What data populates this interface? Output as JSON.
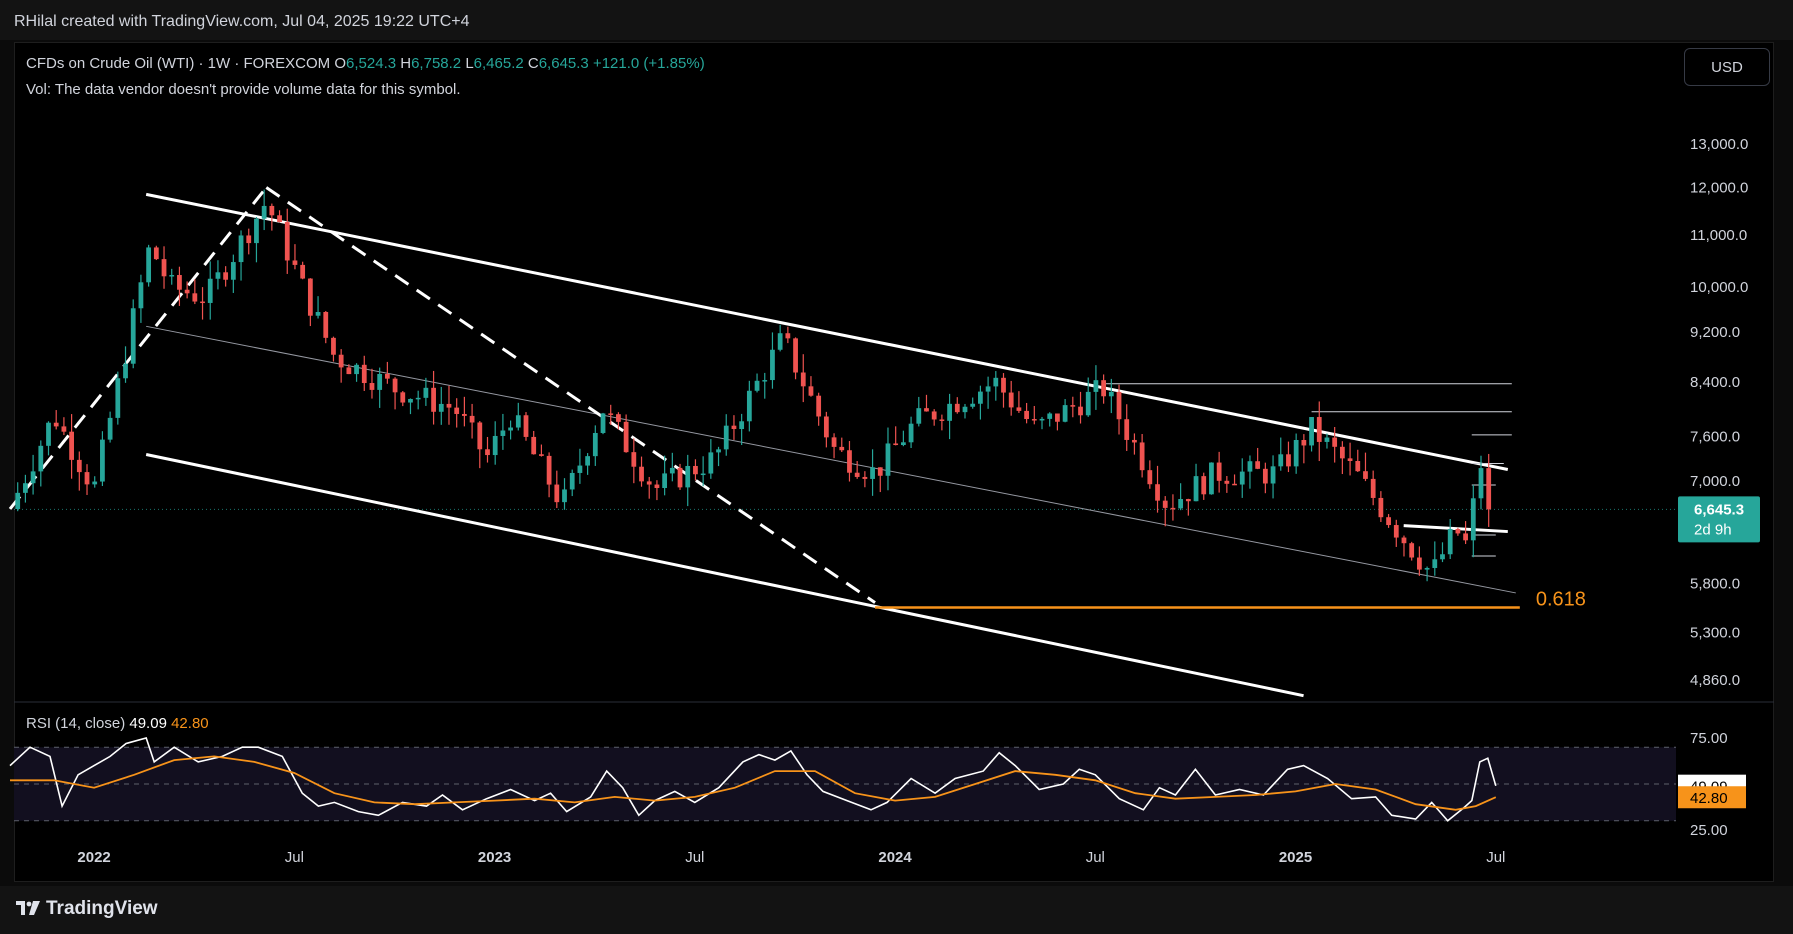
{
  "header": {
    "credit": "RHilal created with TradingView.com, Jul 04, 2025 19:22 UTC+4"
  },
  "legend": {
    "symbol": "CFDs on Crude Oil (WTI) · 1W · FOREXCOM",
    "o_label": "O",
    "o_value": "6,524.3",
    "h_label": "H",
    "h_value": "6,758.2",
    "l_label": "L",
    "l_value": "6,465.2",
    "c_label": "C",
    "c_value": "6,645.3",
    "change": "+121.0 (+1.85%)",
    "volume_note": "Vol: The data vendor doesn't provide volume data for this symbol."
  },
  "currency_button": "USD",
  "rsi": {
    "label": "RSI (14, close)",
    "value": "49.09",
    "ma_value": "42.80"
  },
  "footer": {
    "brand": "TradingView"
  },
  "colors": {
    "up": "#26a69a",
    "down": "#ef5350",
    "rsi": "#ffffff",
    "rsi_ma": "#f7931a",
    "fib": "#f7931a",
    "background": "#000000"
  },
  "chart_data": [
    {
      "type": "candlestick",
      "title": "CFDs on Crude Oil (WTI) · 1W · FOREXCOM",
      "scale": "log",
      "y_ticks": [
        {
          "v": 13000,
          "label": "13,000.0"
        },
        {
          "v": 12000,
          "label": "12,000.0"
        },
        {
          "v": 11000,
          "label": "11,000.0"
        },
        {
          "v": 10000,
          "label": "10,000.0"
        },
        {
          "v": 9200,
          "label": "9,200.0"
        },
        {
          "v": 8400,
          "label": "8,400.0"
        },
        {
          "v": 7600,
          "label": "7,600.0"
        },
        {
          "v": 7000,
          "label": "7,000.0"
        },
        {
          "v": 5800,
          "label": "5,800.0"
        },
        {
          "v": 5300,
          "label": "5,300.0"
        },
        {
          "v": 4860,
          "label": "4,860.0"
        }
      ],
      "ylim": [
        4700,
        14300
      ],
      "x_ticks": [
        {
          "t": 2022.0,
          "label": "2022",
          "bold": true
        },
        {
          "t": 2022.5,
          "label": "Jul",
          "bold": false
        },
        {
          "t": 2023.0,
          "label": "2023",
          "bold": true
        },
        {
          "t": 2023.5,
          "label": "Jul",
          "bold": false
        },
        {
          "t": 2024.0,
          "label": "2024",
          "bold": true
        },
        {
          "t": 2024.5,
          "label": "Jul",
          "bold": false
        },
        {
          "t": 2025.0,
          "label": "2025",
          "bold": true
        },
        {
          "t": 2025.5,
          "label": "Jul",
          "bold": false
        }
      ],
      "xlim": [
        2021.8,
        2025.95
      ],
      "last_price": {
        "value": 6645.3,
        "label": "6,645.3",
        "countdown": "2d 9h"
      },
      "fib_level": {
        "label": "0.618",
        "value": 5550
      },
      "anchors": [
        {
          "t": 2021.79,
          "v": 6650
        },
        {
          "t": 2021.9,
          "v": 7900
        },
        {
          "t": 2022.0,
          "v": 6900
        },
        {
          "t": 2022.14,
          "v": 10800
        },
        {
          "t": 2022.19,
          "v": 10000
        },
        {
          "t": 2022.28,
          "v": 9800
        },
        {
          "t": 2022.43,
          "v": 11700
        },
        {
          "t": 2022.52,
          "v": 10000
        },
        {
          "t": 2022.6,
          "v": 8800
        },
        {
          "t": 2022.75,
          "v": 8300
        },
        {
          "t": 2022.9,
          "v": 8000
        },
        {
          "t": 2022.98,
          "v": 7300
        },
        {
          "t": 2023.04,
          "v": 7900
        },
        {
          "t": 2023.17,
          "v": 6700
        },
        {
          "t": 2023.27,
          "v": 8000
        },
        {
          "t": 2023.4,
          "v": 6900
        },
        {
          "t": 2023.55,
          "v": 7300
        },
        {
          "t": 2023.72,
          "v": 9100
        },
        {
          "t": 2023.85,
          "v": 7400
        },
        {
          "t": 2023.95,
          "v": 7100
        },
        {
          "t": 2024.05,
          "v": 7800
        },
        {
          "t": 2024.25,
          "v": 8400
        },
        {
          "t": 2024.35,
          "v": 7700
        },
        {
          "t": 2024.52,
          "v": 8300
        },
        {
          "t": 2024.68,
          "v": 6700
        },
        {
          "t": 2024.8,
          "v": 7100
        },
        {
          "t": 2024.95,
          "v": 7100
        },
        {
          "t": 2025.04,
          "v": 7700
        },
        {
          "t": 2025.15,
          "v": 7100
        },
        {
          "t": 2025.27,
          "v": 6300
        },
        {
          "t": 2025.34,
          "v": 5900
        },
        {
          "t": 2025.4,
          "v": 6400
        },
        {
          "t": 2025.43,
          "v": 6200
        },
        {
          "t": 2025.46,
          "v": 7300
        },
        {
          "t": 2025.48,
          "v": 6800
        },
        {
          "t": 2025.5,
          "v": 6645
        }
      ],
      "trendlines": [
        {
          "from": {
            "t": 2022.13,
            "v": 11850
          },
          "to": {
            "t": 2025.53,
            "v": 7150
          },
          "style": "solid",
          "width": 3
        },
        {
          "from": {
            "t": 2022.13,
            "v": 9300
          },
          "to": {
            "t": 2025.55,
            "v": 5700
          },
          "style": "solid",
          "width": 1
        },
        {
          "from": {
            "t": 2022.13,
            "v": 7350
          },
          "to": {
            "t": 2025.02,
            "v": 4720
          },
          "style": "solid",
          "width": 3
        },
        {
          "from": {
            "t": 2021.79,
            "v": 6650
          },
          "to": {
            "t": 2022.43,
            "v": 12000
          },
          "style": "dashed",
          "width": 3
        },
        {
          "from": {
            "t": 2022.43,
            "v": 12000
          },
          "to": {
            "t": 2023.95,
            "v": 5600
          },
          "style": "dashed",
          "width": 3
        },
        {
          "from": {
            "t": 2025.27,
            "v": 6450
          },
          "to": {
            "t": 2025.53,
            "v": 6380
          },
          "style": "solid",
          "width": 3
        }
      ],
      "horizontal_lines": [
        {
          "from_t": 2024.52,
          "to_t": 2025.54,
          "v": 8370
        },
        {
          "from_t": 2025.04,
          "to_t": 2025.54,
          "v": 7950
        },
        {
          "from_t": 2025.44,
          "to_t": 2025.54,
          "v": 7620
        },
        {
          "from_t": 2025.44,
          "to_t": 2025.52,
          "v": 7230
        },
        {
          "from_t": 2025.44,
          "to_t": 2025.5,
          "v": 6950
        },
        {
          "from_t": 2025.44,
          "to_t": 2025.5,
          "v": 6340
        },
        {
          "from_t": 2025.44,
          "to_t": 2025.5,
          "v": 6100
        }
      ]
    },
    {
      "type": "line",
      "title": "RSI (14, close)",
      "ylim": [
        25,
        75
      ],
      "y_ticks": [
        {
          "v": 75,
          "label": "75.00"
        },
        {
          "v": 25,
          "label": "25.00"
        }
      ],
      "band": [
        30,
        70
      ],
      "series": [
        {
          "name": "RSI",
          "points": [
            [
              2021.79,
              60
            ],
            [
              2021.84,
              70
            ],
            [
              2021.89,
              65
            ],
            [
              2021.92,
              38
            ],
            [
              2021.96,
              55
            ],
            [
              2022.0,
              60
            ],
            [
              2022.04,
              65
            ],
            [
              2022.08,
              72
            ],
            [
              2022.13,
              75
            ],
            [
              2022.15,
              62
            ],
            [
              2022.2,
              70
            ],
            [
              2022.26,
              62
            ],
            [
              2022.32,
              65
            ],
            [
              2022.37,
              70
            ],
            [
              2022.41,
              70
            ],
            [
              2022.47,
              65
            ],
            [
              2022.52,
              45
            ],
            [
              2022.56,
              38
            ],
            [
              2022.6,
              40
            ],
            [
              2022.66,
              35
            ],
            [
              2022.71,
              33
            ],
            [
              2022.77,
              40
            ],
            [
              2022.83,
              38
            ],
            [
              2022.87,
              44
            ],
            [
              2022.92,
              36
            ],
            [
              2022.98,
              42
            ],
            [
              2023.04,
              47
            ],
            [
              2023.1,
              41
            ],
            [
              2023.14,
              45
            ],
            [
              2023.18,
              35
            ],
            [
              2023.24,
              43
            ],
            [
              2023.28,
              57
            ],
            [
              2023.32,
              48
            ],
            [
              2023.36,
              33
            ],
            [
              2023.4,
              41
            ],
            [
              2023.45,
              46
            ],
            [
              2023.5,
              40
            ],
            [
              2023.56,
              48
            ],
            [
              2023.62,
              62
            ],
            [
              2023.66,
              66
            ],
            [
              2023.7,
              63
            ],
            [
              2023.74,
              68
            ],
            [
              2023.78,
              55
            ],
            [
              2023.82,
              46
            ],
            [
              2023.88,
              41
            ],
            [
              2023.94,
              36
            ],
            [
              2023.98,
              40
            ],
            [
              2024.04,
              53
            ],
            [
              2024.1,
              45
            ],
            [
              2024.15,
              53
            ],
            [
              2024.22,
              57
            ],
            [
              2024.26,
              67
            ],
            [
              2024.3,
              60
            ],
            [
              2024.36,
              47
            ],
            [
              2024.42,
              50
            ],
            [
              2024.46,
              58
            ],
            [
              2024.5,
              55
            ],
            [
              2024.56,
              42
            ],
            [
              2024.62,
              36
            ],
            [
              2024.66,
              48
            ],
            [
              2024.7,
              44
            ],
            [
              2024.75,
              58
            ],
            [
              2024.8,
              44
            ],
            [
              2024.86,
              47
            ],
            [
              2024.92,
              44
            ],
            [
              2024.98,
              58
            ],
            [
              2025.02,
              60
            ],
            [
              2025.08,
              53
            ],
            [
              2025.14,
              42
            ],
            [
              2025.2,
              43
            ],
            [
              2025.24,
              33
            ],
            [
              2025.3,
              31
            ],
            [
              2025.34,
              40
            ],
            [
              2025.38,
              30
            ],
            [
              2025.42,
              37
            ],
            [
              2025.44,
              41
            ],
            [
              2025.46,
              62
            ],
            [
              2025.48,
              64
            ],
            [
              2025.5,
              49
            ]
          ]
        },
        {
          "name": "RSI MA",
          "points": [
            [
              2021.79,
              52
            ],
            [
              2021.9,
              52
            ],
            [
              2022.0,
              48
            ],
            [
              2022.1,
              55
            ],
            [
              2022.2,
              63
            ],
            [
              2022.3,
              65
            ],
            [
              2022.4,
              62
            ],
            [
              2022.5,
              56
            ],
            [
              2022.6,
              45
            ],
            [
              2022.7,
              40
            ],
            [
              2022.8,
              39
            ],
            [
              2022.9,
              40
            ],
            [
              2023.0,
              41
            ],
            [
              2023.1,
              42
            ],
            [
              2023.2,
              40
            ],
            [
              2023.3,
              43
            ],
            [
              2023.4,
              41
            ],
            [
              2023.5,
              43
            ],
            [
              2023.6,
              48
            ],
            [
              2023.7,
              57
            ],
            [
              2023.8,
              57
            ],
            [
              2023.9,
              45
            ],
            [
              2024.0,
              41
            ],
            [
              2024.1,
              43
            ],
            [
              2024.2,
              50
            ],
            [
              2024.3,
              57
            ],
            [
              2024.4,
              55
            ],
            [
              2024.5,
              52
            ],
            [
              2024.6,
              45
            ],
            [
              2024.7,
              42
            ],
            [
              2024.8,
              43
            ],
            [
              2024.9,
              44
            ],
            [
              2025.0,
              46
            ],
            [
              2025.1,
              50
            ],
            [
              2025.2,
              47
            ],
            [
              2025.3,
              39
            ],
            [
              2025.4,
              36
            ],
            [
              2025.45,
              38
            ],
            [
              2025.5,
              42.8
            ]
          ]
        }
      ],
      "last_values": [
        {
          "name": "RSI",
          "value": 49.09,
          "label": "49.09"
        },
        {
          "name": "RSI MA",
          "value": 42.8,
          "label": "42.80"
        }
      ]
    }
  ]
}
